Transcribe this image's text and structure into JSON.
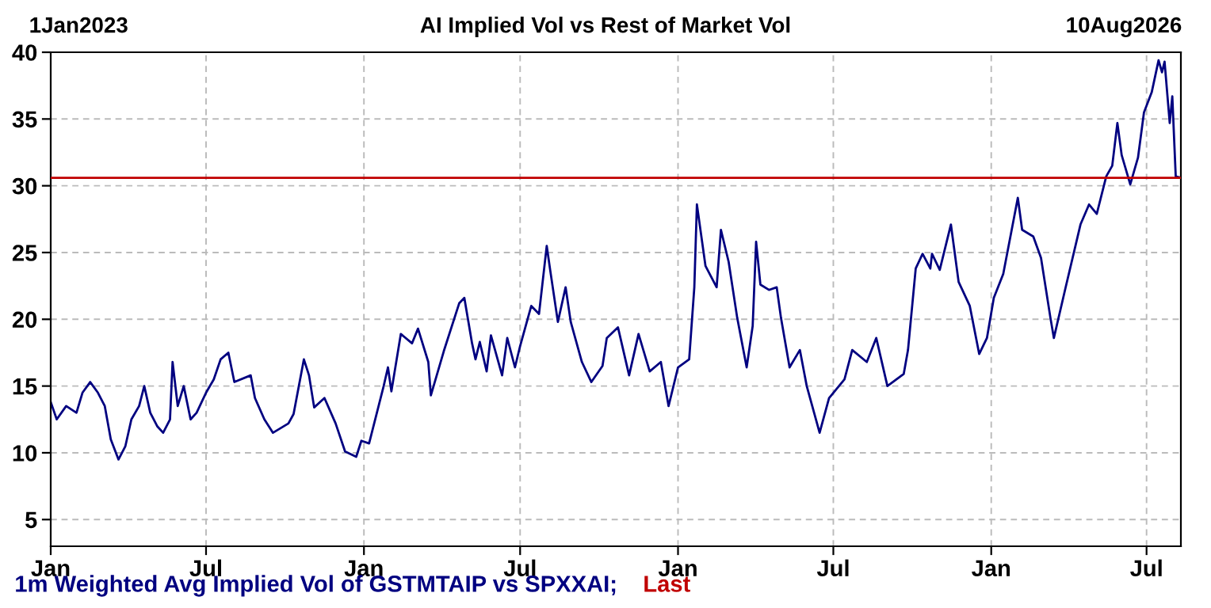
{
  "chart_data": {
    "type": "line",
    "title": "AI Implied Vol vs Rest of Market Vol",
    "annotations": [
      "1Jan2023",
      "10Aug2026"
    ],
    "x": [
      "2023-01-01",
      "2023-01-08",
      "2023-01-19",
      "2023-01-31",
      "2023-02-07",
      "2023-02-16",
      "2023-02-25",
      "2023-03-05",
      "2023-03-12",
      "2023-03-21",
      "2023-03-29",
      "2023-04-05",
      "2023-04-14",
      "2023-04-20",
      "2023-04-27",
      "2023-05-05",
      "2023-05-12",
      "2023-05-20",
      "2023-05-23",
      "2023-05-29",
      "2023-06-05",
      "2023-06-13",
      "2023-06-20",
      "2023-07-01",
      "2023-07-10",
      "2023-07-18",
      "2023-07-27",
      "2023-08-03",
      "2023-08-22",
      "2023-08-27",
      "2023-09-07",
      "2023-09-17",
      "2023-10-05",
      "2023-10-11",
      "2023-10-23",
      "2023-10-29",
      "2023-11-04",
      "2023-11-16",
      "2023-11-29",
      "2023-12-10",
      "2023-12-23",
      "2023-12-29",
      "2024-01-07",
      "2024-01-24",
      "2024-01-29",
      "2024-02-02",
      "2024-02-13",
      "2024-02-26",
      "2024-03-04",
      "2024-03-16",
      "2024-03-19",
      "2024-04-03",
      "2024-04-21",
      "2024-04-27",
      "2024-05-06",
      "2024-05-10",
      "2024-05-15",
      "2024-05-23",
      "2024-05-28",
      "2024-06-10",
      "2024-06-16",
      "2024-06-25",
      "2024-07-01",
      "2024-07-14",
      "2024-07-23",
      "2024-08-01",
      "2024-08-05",
      "2024-08-14",
      "2024-08-23",
      "2024-08-29",
      "2024-09-11",
      "2024-09-22",
      "2024-10-05",
      "2024-10-10",
      "2024-10-23",
      "2024-11-05",
      "2024-11-16",
      "2024-11-29",
      "2024-12-12",
      "2024-12-21",
      "2025-01-01",
      "2025-01-14",
      "2025-01-20",
      "2025-01-23",
      "2025-02-02",
      "2025-02-15",
      "2025-02-20",
      "2025-03-01",
      "2025-03-11",
      "2025-03-22",
      "2025-03-29",
      "2025-04-02",
      "2025-04-07",
      "2025-04-17",
      "2025-04-26",
      "2025-05-01",
      "2025-05-11",
      "2025-05-23",
      "2025-05-31",
      "2025-06-15",
      "2025-06-26",
      "2025-07-14",
      "2025-07-23",
      "2025-08-09",
      "2025-08-20",
      "2025-09-02",
      "2025-09-21",
      "2025-09-26",
      "2025-10-05",
      "2025-10-13",
      "2025-10-22",
      "2025-10-24",
      "2025-11-02",
      "2025-11-15",
      "2025-11-24",
      "2025-12-07",
      "2025-12-18",
      "2025-12-27",
      "2026-01-04",
      "2026-01-15",
      "2026-02-01",
      "2026-02-06",
      "2026-02-19",
      "2026-02-28",
      "2026-03-11",
      "2026-03-15",
      "2026-03-28",
      "2026-04-15",
      "2026-04-25",
      "2026-05-04",
      "2026-05-15",
      "2026-05-22",
      "2026-05-28",
      "2026-06-02",
      "2026-06-12",
      "2026-06-21",
      "2026-06-28",
      "2026-07-07",
      "2026-07-15",
      "2026-07-19",
      "2026-07-22",
      "2026-07-28",
      "2026-07-31",
      "2026-08-04",
      "2026-08-10"
    ],
    "series": [
      {
        "name": "1m Weighted Avg Implied Vol of GSTMTAIP vs SPXXAI;",
        "color": "#000080",
        "values": [
          13.8,
          12.5,
          13.5,
          13.0,
          14.5,
          15.3,
          14.5,
          13.5,
          11.0,
          9.5,
          10.5,
          12.5,
          13.5,
          15.0,
          13.0,
          12.0,
          11.5,
          12.5,
          16.8,
          13.5,
          15.0,
          12.5,
          13.0,
          14.5,
          15.5,
          17.0,
          17.5,
          15.3,
          15.8,
          14.1,
          12.5,
          11.5,
          12.2,
          12.9,
          17.0,
          15.8,
          13.4,
          14.1,
          12.2,
          10.1,
          9.7,
          10.9,
          10.7,
          15.0,
          16.4,
          14.6,
          18.9,
          18.2,
          19.3,
          16.8,
          14.3,
          17.6,
          21.2,
          21.6,
          18.2,
          17.0,
          18.3,
          16.1,
          18.8,
          15.8,
          18.6,
          16.4,
          18.0,
          21.0,
          20.4,
          25.5,
          23.7,
          19.8,
          22.4,
          19.8,
          16.8,
          15.3,
          16.5,
          18.6,
          19.4,
          15.8,
          18.9,
          16.1,
          16.8,
          13.5,
          16.4,
          17.0,
          22.4,
          28.6,
          24.0,
          22.4,
          26.7,
          24.3,
          20.1,
          16.4,
          19.5,
          25.8,
          22.6,
          22.2,
          22.4,
          20.1,
          16.4,
          17.7,
          15.0,
          11.5,
          14.1,
          15.5,
          17.7,
          16.8,
          18.6,
          15.0,
          15.9,
          17.7,
          23.8,
          24.9,
          23.8,
          24.9,
          23.7,
          27.1,
          22.8,
          21.0,
          17.4,
          18.6,
          21.6,
          23.4,
          29.1,
          26.7,
          26.2,
          24.6,
          20.1,
          18.6,
          22.2,
          27.1,
          28.6,
          27.9,
          30.7,
          31.5,
          34.7,
          32.3,
          30.1,
          32.1,
          35.5,
          37.0,
          39.4,
          38.5,
          39.3,
          34.7,
          36.7,
          30.7,
          30.6
        ]
      }
    ],
    "ref_lines": [
      {
        "axis": "y",
        "value": 30.6,
        "label": "Last",
        "color": "#c00000"
      }
    ],
    "xlim": [
      "2023-01-01",
      "2026-08-10"
    ],
    "xticks": [
      {
        "value": "2023-01-01",
        "label": "Jan"
      },
      {
        "value": "2023-07-01",
        "label": "Jul"
      },
      {
        "value": "2024-01-01",
        "label": "Jan"
      },
      {
        "value": "2024-07-01",
        "label": "Jul"
      },
      {
        "value": "2025-01-01",
        "label": "Jan"
      },
      {
        "value": "2025-07-01",
        "label": "Jul"
      },
      {
        "value": "2026-01-01",
        "label": "Jan"
      },
      {
        "value": "2026-07-01",
        "label": "Jul"
      }
    ],
    "ylim": [
      3,
      40
    ],
    "yticks": [
      5,
      10,
      15,
      20,
      25,
      30,
      35,
      40
    ],
    "grid": true,
    "legend": "bottom",
    "line_style": "solid",
    "marker": "none"
  }
}
